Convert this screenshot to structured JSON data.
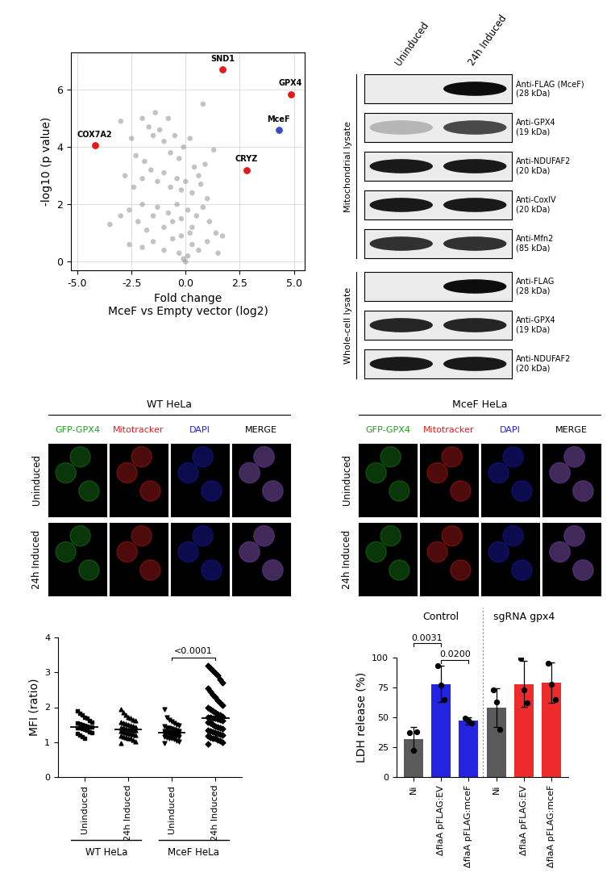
{
  "chart_data": [
    {
      "type": "scatter",
      "xlabel": "Fold change\nMceF vs Empty vector (log2)",
      "ylabel": "-log10 (p value)",
      "xlim": [
        -5.3,
        5.5
      ],
      "ylim": [
        -0.3,
        7.3
      ],
      "xticks": [
        -5.0,
        -2.5,
        0.0,
        2.5,
        5.0
      ],
      "yticks": [
        0,
        2,
        4,
        6
      ],
      "grid": true,
      "color": "#888888",
      "x": [
        -3.0,
        -2.5,
        -2.3,
        -2.0,
        -1.9,
        -1.7,
        -1.5,
        -1.4,
        -1.2,
        -1.0,
        -0.8,
        -0.7,
        -0.5,
        -0.3,
        -0.1,
        0.2,
        0.4,
        0.6,
        0.8,
        1.3,
        -2.8,
        -2.4,
        -2.0,
        -1.6,
        -1.3,
        -1.0,
        -0.7,
        -0.4,
        -0.2,
        0.0,
        0.3,
        0.7,
        1.0,
        0.9,
        -3.5,
        -3.0,
        -2.6,
        -2.2,
        -2.0,
        -1.8,
        -1.5,
        -1.3,
        -1.0,
        -0.8,
        -0.6,
        -0.4,
        -0.2,
        0.1,
        0.3,
        0.5,
        0.8,
        1.1,
        1.4,
        1.7,
        -2.6,
        -2.0,
        -1.5,
        -1.0,
        -0.6,
        -0.3,
        -0.1,
        0.0,
        0.1,
        0.3,
        0.6,
        1.0,
        1.5,
        -0.2,
        0.2
      ],
      "values": [
        4.9,
        4.3,
        3.7,
        5.0,
        3.5,
        4.7,
        4.4,
        5.2,
        4.6,
        4.2,
        5.0,
        3.8,
        4.4,
        3.6,
        4.0,
        4.3,
        3.3,
        3.0,
        5.5,
        3.9,
        3.0,
        2.6,
        2.9,
        3.2,
        2.8,
        3.1,
        2.6,
        2.9,
        2.5,
        2.8,
        2.4,
        2.7,
        2.2,
        3.4,
        1.3,
        1.6,
        1.8,
        1.4,
        2.0,
        1.1,
        1.6,
        1.9,
        1.2,
        1.7,
        1.4,
        2.0,
        1.5,
        1.8,
        1.2,
        1.6,
        1.9,
        1.4,
        1.0,
        0.9,
        0.6,
        0.5,
        0.7,
        0.4,
        0.8,
        0.3,
        0.1,
        0.0,
        0.2,
        0.6,
        0.4,
        0.7,
        0.3,
        0.9,
        1.0
      ],
      "highlights": [
        {
          "label": "SND1",
          "x": 1.7,
          "y": 6.7,
          "color": "#e31a1c"
        },
        {
          "label": "GPX4",
          "x": 4.85,
          "y": 5.85,
          "color": "#e31a1c"
        },
        {
          "label": "MceF",
          "x": 4.3,
          "y": 4.6,
          "color": "#3b4cc0"
        },
        {
          "label": "COX7A2",
          "x": -4.2,
          "y": 4.05,
          "color": "#e31a1c"
        },
        {
          "label": "CRYZ",
          "x": 2.8,
          "y": 3.2,
          "color": "#e31a1c"
        }
      ]
    },
    {
      "type": "strip",
      "ylabel": "MFI (ratio)",
      "ylim": [
        0,
        4
      ],
      "yticks": [
        0,
        1,
        2,
        3,
        4
      ],
      "categories": [
        "Uninduced",
        "24h Induced",
        "Uninduced",
        "24h Induced"
      ],
      "points": [
        {
          "marker": "square",
          "median": 1.43,
          "values": [
            1.9,
            1.83,
            1.78,
            1.72,
            1.68,
            1.62,
            1.58,
            1.55,
            1.52,
            1.5,
            1.48,
            1.46,
            1.44,
            1.43,
            1.42,
            1.4,
            1.38,
            1.36,
            1.34,
            1.3,
            1.27,
            1.24,
            1.2,
            1.16,
            1.12
          ]
        },
        {
          "marker": "triangle",
          "median": 1.36,
          "values": [
            1.95,
            1.85,
            1.78,
            1.72,
            1.68,
            1.65,
            1.62,
            1.58,
            1.55,
            1.52,
            1.5,
            1.48,
            1.46,
            1.44,
            1.42,
            1.4,
            1.38,
            1.37,
            1.36,
            1.35,
            1.33,
            1.31,
            1.3,
            1.28,
            1.26,
            1.24,
            1.22,
            1.2,
            1.18,
            1.16,
            1.14,
            1.12,
            1.1,
            1.06,
            1.02,
            0.96
          ]
        },
        {
          "marker": "triangle_down",
          "median": 1.28,
          "values": [
            1.95,
            1.72,
            1.65,
            1.6,
            1.55,
            1.5,
            1.47,
            1.45,
            1.42,
            1.4,
            1.38,
            1.36,
            1.34,
            1.32,
            1.31,
            1.3,
            1.29,
            1.28,
            1.28,
            1.27,
            1.26,
            1.25,
            1.24,
            1.22,
            1.2,
            1.19,
            1.18,
            1.16,
            1.15,
            1.13,
            1.12,
            1.1,
            1.08,
            1.05,
            1.02,
            0.97
          ]
        },
        {
          "marker": "diamond",
          "median": 1.68,
          "values": [
            3.18,
            3.12,
            3.05,
            2.98,
            2.92,
            2.8,
            2.7,
            2.55,
            2.45,
            2.35,
            2.3,
            2.2,
            2.12,
            2.05,
            2.0,
            1.95,
            1.9,
            1.85,
            1.8,
            1.77,
            1.74,
            1.72,
            1.7,
            1.69,
            1.68,
            1.67,
            1.65,
            1.62,
            1.58,
            1.55,
            1.5,
            1.46,
            1.43,
            1.4,
            1.38,
            1.35,
            1.32,
            1.3,
            1.28,
            1.25,
            1.22,
            1.2,
            1.17,
            1.14,
            1.12,
            1.1,
            1.07,
            1.04,
            1.0,
            0.95
          ]
        }
      ],
      "groups": [
        {
          "label": "WT HeLa",
          "span": [
            0,
            1
          ]
        },
        {
          "label": "MceF HeLa",
          "span": [
            2,
            3
          ]
        }
      ],
      "annotations": [
        {
          "text": "<0.0001",
          "between": [
            2,
            3
          ]
        }
      ]
    },
    {
      "type": "bar",
      "ylabel": "LDH release (%)",
      "ylim": [
        0,
        100
      ],
      "yticks": [
        0,
        25,
        50,
        75,
        100
      ],
      "categories": [
        "Ni",
        "ΔflaA pFLAG:EV",
        "ΔflaA pFLAG:mceF",
        "Ni",
        "ΔflaA pFLAG:EV",
        "ΔflaA pFLAG:mceF"
      ],
      "values": [
        32,
        78,
        47,
        58,
        78,
        79
      ],
      "errors": [
        10,
        15,
        3,
        16,
        19,
        17
      ],
      "points": [
        [
          37,
          22,
          38
        ],
        [
          93,
          77,
          65
        ],
        [
          49,
          47,
          45
        ],
        [
          73,
          63,
          40
        ],
        [
          99,
          73,
          62
        ],
        [
          95,
          78,
          65
        ]
      ],
      "colors": [
        "#5a5a5a",
        "#2323e0",
        "#2323e0",
        "#5a5a5a",
        "#ee2b2b",
        "#ee2b2b"
      ],
      "groups": [
        {
          "label": "Control",
          "span": [
            0,
            2
          ]
        },
        {
          "label": "sgRNA gpx4",
          "span": [
            3,
            5
          ]
        }
      ],
      "annotations": [
        {
          "text": "0.0031",
          "between": [
            0,
            1
          ]
        },
        {
          "text": "0.0200",
          "between": [
            1,
            2
          ]
        }
      ]
    }
  ],
  "blot": {
    "columns": [
      "Uninduced",
      "24h Induced"
    ],
    "sections": [
      {
        "label": "Mitochondrial lysate",
        "rows": [
          {
            "label": "Anti-FLAG (MceF)\n(28 kDa)",
            "intensity": [
              0.0,
              1.0
            ]
          },
          {
            "label": "Anti-GPX4\n(19 kDa)",
            "intensity": [
              0.3,
              0.75
            ]
          },
          {
            "label": "Anti-NDUFAF2\n(20 kDa)",
            "intensity": [
              0.95,
              0.95
            ]
          },
          {
            "label": "Anti-CoxIV\n(20 kDa)",
            "intensity": [
              0.95,
              0.95
            ]
          },
          {
            "label": "Anti-Mfn2\n(85 kDa)",
            "intensity": [
              0.85,
              0.85
            ]
          }
        ]
      },
      {
        "label": "Whole-cell lysate",
        "rows": [
          {
            "label": "Anti-FLAG\n(28 kDa)",
            "intensity": [
              0.0,
              1.0
            ]
          },
          {
            "label": "Anti-GPX4\n(19 kDa)",
            "intensity": [
              0.9,
              0.9
            ]
          },
          {
            "label": "Anti-NDUFAF2\n(20 kDa)",
            "intensity": [
              0.95,
              0.95
            ]
          }
        ]
      }
    ]
  },
  "microscopy": {
    "panels": [
      "WT HeLa",
      "MceF HeLa"
    ],
    "channels": [
      {
        "label": "GFP-GPX4",
        "color": "#1fa01f"
      },
      {
        "label": "Mitotracker",
        "color": "#e02020"
      },
      {
        "label": "DAPI",
        "color": "#2020e0"
      },
      {
        "label": "MERGE",
        "color": "#000000"
      }
    ],
    "rows": [
      "Uninduced",
      "24h Induced"
    ]
  }
}
